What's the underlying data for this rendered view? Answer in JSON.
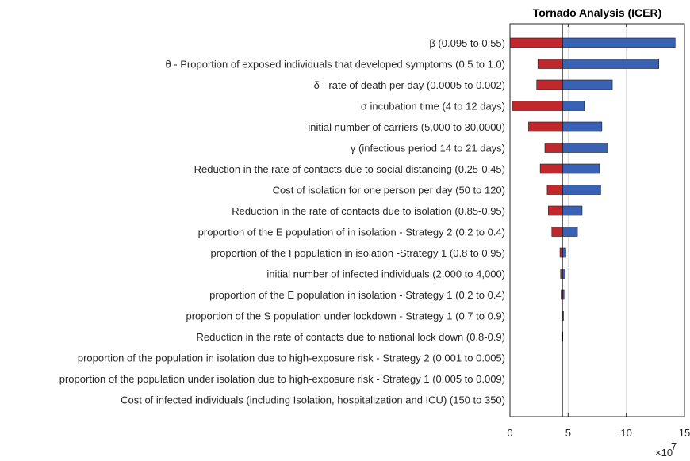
{
  "chart_data": {
    "type": "bar",
    "orientation": "horizontal-tornado",
    "title": "Tornado Analysis (ICER)",
    "xlim": [
      0,
      15
    ],
    "xticks": [
      "0",
      "5",
      "10",
      "15"
    ],
    "x_multiplier_base": "×10",
    "x_multiplier_exp": "7",
    "base_value": 4.5,
    "grid": "vertical",
    "colors": {
      "low": "#c0282d",
      "high": "#3a62b4",
      "base_line": "#000000",
      "grid": "#d9d9d9"
    },
    "categories": [
      "β (0.095 to 0.55)",
      "θ - Proportion of exposed individuals that developed symptoms   (0.5 to 1.0)",
      "δ - rate of death per day (0.0005 to 0.002)",
      "σ incubation time (4 to 12 days)",
      "initial number of carriers  (5,000 to 30,0000)",
      "γ (infectious period 14 to 21 days)",
      "Reduction in the rate of contacts due to social distancing (0.25-0.45)",
      "Cost of isolation for one person per day  (50 to 120)",
      "Reduction in the rate of contacts due to isolation  (0.85-0.95)",
      "proportion of the E population of in isolation  - Strategy 2 (0.2 to 0.4)",
      "proportion of the I population in isolation -Strategy 1 (0.8 to 0.95)",
      "initial number of infected individuals (2,000 to 4,000)",
      "proportion of the E population in isolation  - Strategy 1 (0.2 to 0.4)",
      "proportion of the S population under lockdown  - Strategy 1 (0.7 to 0.9)",
      "Reduction in the rate of contacts due to national lock down  (0.8-0.9)",
      "proportion of the population in isolation due to high-exposure risk - Strategy 2 (0.001 to 0.005)",
      "proportion of the population under isolation due to high-exposure risk - Strategy 1 (0.005 to 0.009)",
      "Cost of infected individuals (including Isolation, hospitalization and ICU) (150 to 350)"
    ],
    "low_values": [
      0.0,
      2.4,
      2.3,
      0.2,
      1.6,
      3.0,
      2.6,
      3.2,
      3.3,
      3.6,
      4.3,
      4.35,
      4.4,
      4.45,
      4.45,
      4.5,
      4.5,
      4.5
    ],
    "high_values": [
      14.2,
      12.8,
      8.8,
      6.4,
      7.9,
      8.4,
      7.7,
      7.8,
      6.2,
      5.8,
      4.8,
      4.75,
      4.65,
      4.6,
      4.55,
      4.5,
      4.5,
      4.5
    ]
  }
}
